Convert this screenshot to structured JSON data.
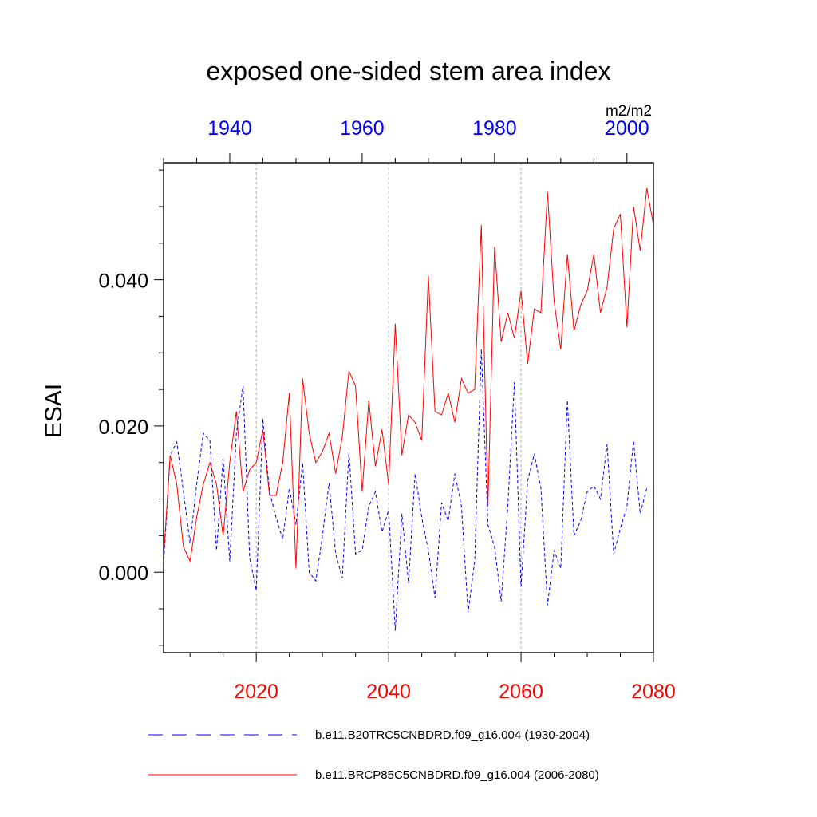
{
  "chart_data": {
    "type": "line",
    "title": "exposed one-sided stem area index",
    "units": "m2/m2",
    "ylabel": "ESAI",
    "ylim": [
      -0.011,
      0.056
    ],
    "yticks": [
      0.0,
      0.02,
      0.04
    ],
    "ytick_labels": [
      "0.000",
      "0.020",
      "0.040"
    ],
    "y_minor_step": 0.005,
    "bottom_axis": {
      "xlim": [
        2006,
        2080
      ],
      "ticks": [
        2020,
        2040,
        2060,
        2080
      ],
      "tick_labels": [
        "2020",
        "2040",
        "2060",
        "2080"
      ],
      "color": "#ff0000",
      "minor_step": 5
    },
    "top_axis": {
      "xlim": [
        1930,
        2004
      ],
      "ticks": [
        1940,
        1960,
        1980,
        2000
      ],
      "tick_labels": [
        "1940",
        "1960",
        "1980",
        "2000"
      ],
      "color": "#0000ff",
      "minor_step": 5
    },
    "gridlines_x": [
      2020,
      2040,
      2060
    ],
    "series": [
      {
        "name": "b.e11.B20TRC5CNBDRD.f09_g16.004 (1930-2004)",
        "color": "#0000ff",
        "style": "dashed",
        "x_start": 1930,
        "values": [
          0.001,
          0.016,
          0.0178,
          0.011,
          0.004,
          0.012,
          0.019,
          0.018,
          0.003,
          0.0155,
          0.0015,
          0.019,
          0.0255,
          0.002,
          -0.0025,
          0.021,
          0.011,
          0.0075,
          0.0045,
          0.0115,
          0.0065,
          0.015,
          0.0,
          -0.0012,
          0.005,
          0.0122,
          0.0025,
          -0.0008,
          0.0165,
          0.0025,
          0.003,
          0.009,
          0.011,
          0.0055,
          0.0085,
          -0.008,
          0.008,
          -0.0015,
          0.0135,
          0.0075,
          0.003,
          -0.0035,
          0.0095,
          0.007,
          0.0135,
          0.009,
          -0.0055,
          0.0015,
          0.0305,
          0.0065,
          0.0035,
          -0.004,
          0.009,
          0.026,
          -0.002,
          0.0125,
          0.0162,
          0.0115,
          -0.0045,
          0.003,
          0.0005,
          0.0235,
          0.005,
          0.007,
          0.011,
          0.0118,
          0.01,
          0.0175,
          0.0025,
          0.006,
          0.009,
          0.018,
          0.008,
          0.0115
        ]
      },
      {
        "name": "b.e11.BRCP85C5CNBDRD.f09_g16.004 (2006-2080)",
        "color": "#ff0000",
        "style": "solid",
        "x_start": 2006,
        "values": [
          0.002,
          0.016,
          0.012,
          0.0035,
          0.0015,
          0.0075,
          0.012,
          0.015,
          0.012,
          0.005,
          0.015,
          0.022,
          0.011,
          0.014,
          0.015,
          0.0195,
          0.0105,
          0.0105,
          0.015,
          0.0245,
          0.0005,
          0.0265,
          0.019,
          0.015,
          0.0165,
          0.019,
          0.0135,
          0.0185,
          0.0275,
          0.0255,
          0.011,
          0.0235,
          0.0145,
          0.0195,
          0.012,
          0.034,
          0.016,
          0.0215,
          0.0205,
          0.018,
          0.0405,
          0.022,
          0.0215,
          0.0245,
          0.0205,
          0.0265,
          0.0245,
          0.025,
          0.0475,
          0.009,
          0.0445,
          0.0315,
          0.0355,
          0.032,
          0.0385,
          0.0285,
          0.036,
          0.0355,
          0.052,
          0.037,
          0.0305,
          0.0435,
          0.033,
          0.0365,
          0.0385,
          0.0435,
          0.0355,
          0.039,
          0.047,
          0.049,
          0.0335,
          0.05,
          0.044,
          0.0525,
          0.0475
        ]
      }
    ]
  }
}
